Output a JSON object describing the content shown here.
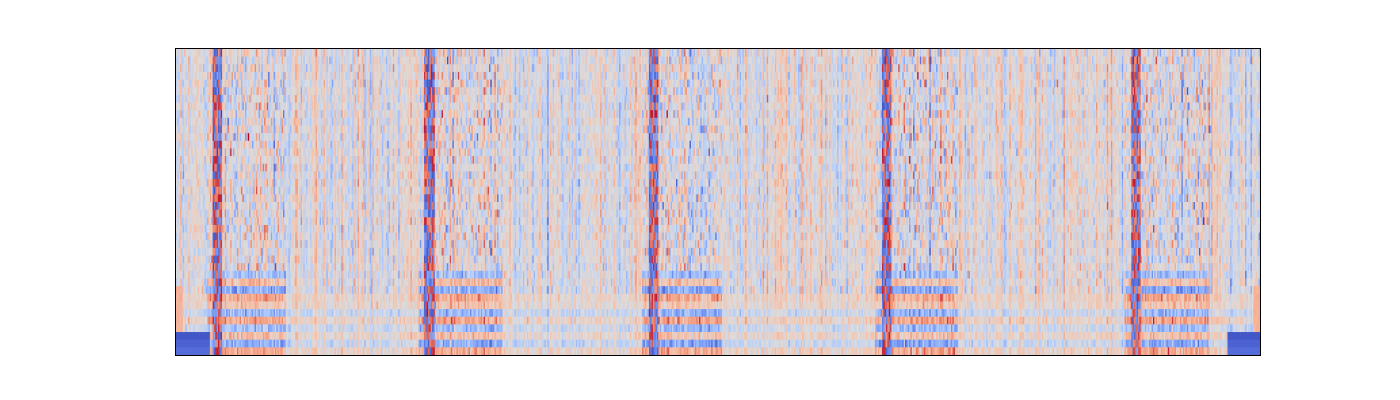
{
  "chart_data": {
    "type": "heatmap",
    "title": "",
    "xlabel": "",
    "ylabel": "",
    "axes_ticks_visible": false,
    "colormap": "coolwarm",
    "colormap_stops": [
      "#3b4cc0",
      "#7396f5",
      "#b0cbfc",
      "#dddcdc",
      "#f6bfa6",
      "#ee8468",
      "#b40426"
    ],
    "value_range": [
      -1,
      1
    ],
    "n_rows": 40,
    "n_cols": 800,
    "structure": {
      "neutral_value": 0.0,
      "noise_amplitude": 0.5,
      "active_bands_fraction": [
        [
          0.038,
          0.1
        ],
        [
          0.233,
          0.3
        ],
        [
          0.44,
          0.503
        ],
        [
          0.655,
          0.72
        ],
        [
          0.885,
          0.952
        ]
      ],
      "band_edge_intensity": 0.95,
      "bottom_stripe_rows": 3,
      "bottom_stripe_value": -0.85,
      "bottom_stripe_extent": [
        [
          0.0,
          0.03
        ],
        [
          0.97,
          1.0
        ]
      ],
      "edge_row_pattern": [
        0.5,
        -0.6,
        0.35,
        -0.45,
        0.55,
        -0.5,
        0.3
      ]
    }
  }
}
